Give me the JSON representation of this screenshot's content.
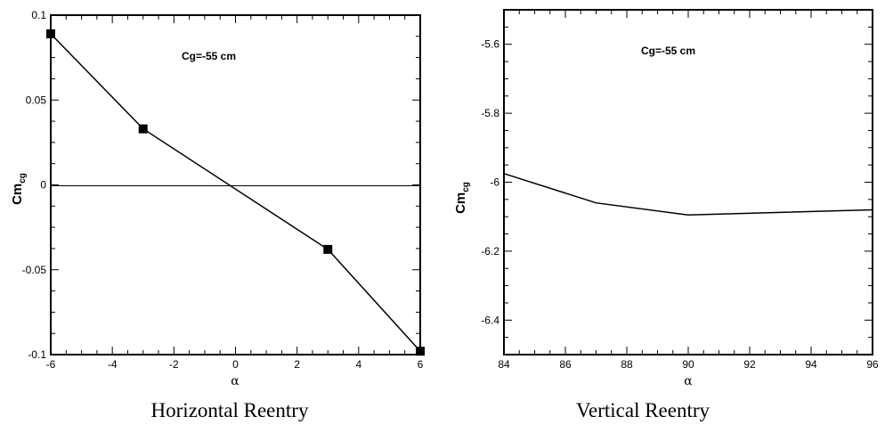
{
  "chart_data": [
    {
      "type": "line",
      "caption": "Horizontal Reentry",
      "annotation": "Cg=-55 cm",
      "ylabel_main": "Cm",
      "ylabel_sub": "cg",
      "xlabel": "α",
      "xlim": [
        -6,
        6
      ],
      "ylim": [
        -0.1,
        0.1
      ],
      "xticks": [
        -6,
        -4,
        -2,
        0,
        2,
        4,
        6
      ],
      "xtick_labels": [
        "-6",
        "-4",
        "-2",
        "0",
        "2",
        "4",
        "6"
      ],
      "yticks": [
        -0.1,
        -0.05,
        0,
        0.05,
        0.1
      ],
      "ytick_labels": [
        "-0.1",
        "-0.05",
        "0",
        "0.05",
        "0.1"
      ],
      "zero_line": true,
      "markers": "square",
      "series": [
        {
          "x": [
            -6,
            -3,
            3,
            6
          ],
          "y": [
            0.089,
            0.033,
            -0.038,
            -0.098
          ]
        }
      ]
    },
    {
      "type": "line",
      "caption": "Vertical Reentry",
      "annotation": "Cg=-55 cm",
      "ylabel_main": "Cm",
      "ylabel_sub": "cg",
      "xlabel": "α",
      "xlim": [
        84,
        96
      ],
      "ylim": [
        -6.5,
        -5.5
      ],
      "xticks": [
        84,
        86,
        88,
        90,
        92,
        94,
        96
      ],
      "xtick_labels": [
        "84",
        "86",
        "88",
        "90",
        "92",
        "94",
        "96"
      ],
      "yticks": [
        -6.4,
        -6.2,
        -6.0,
        -5.8,
        -5.6
      ],
      "ytick_labels": [
        "-6.4",
        "-6.2",
        "-6",
        "-5.8",
        "-5.6"
      ],
      "zero_line": false,
      "markers": "none",
      "series": [
        {
          "x": [
            84,
            87,
            90,
            96
          ],
          "y": [
            -5.975,
            -6.06,
            -6.095,
            -6.08
          ]
        }
      ]
    }
  ]
}
